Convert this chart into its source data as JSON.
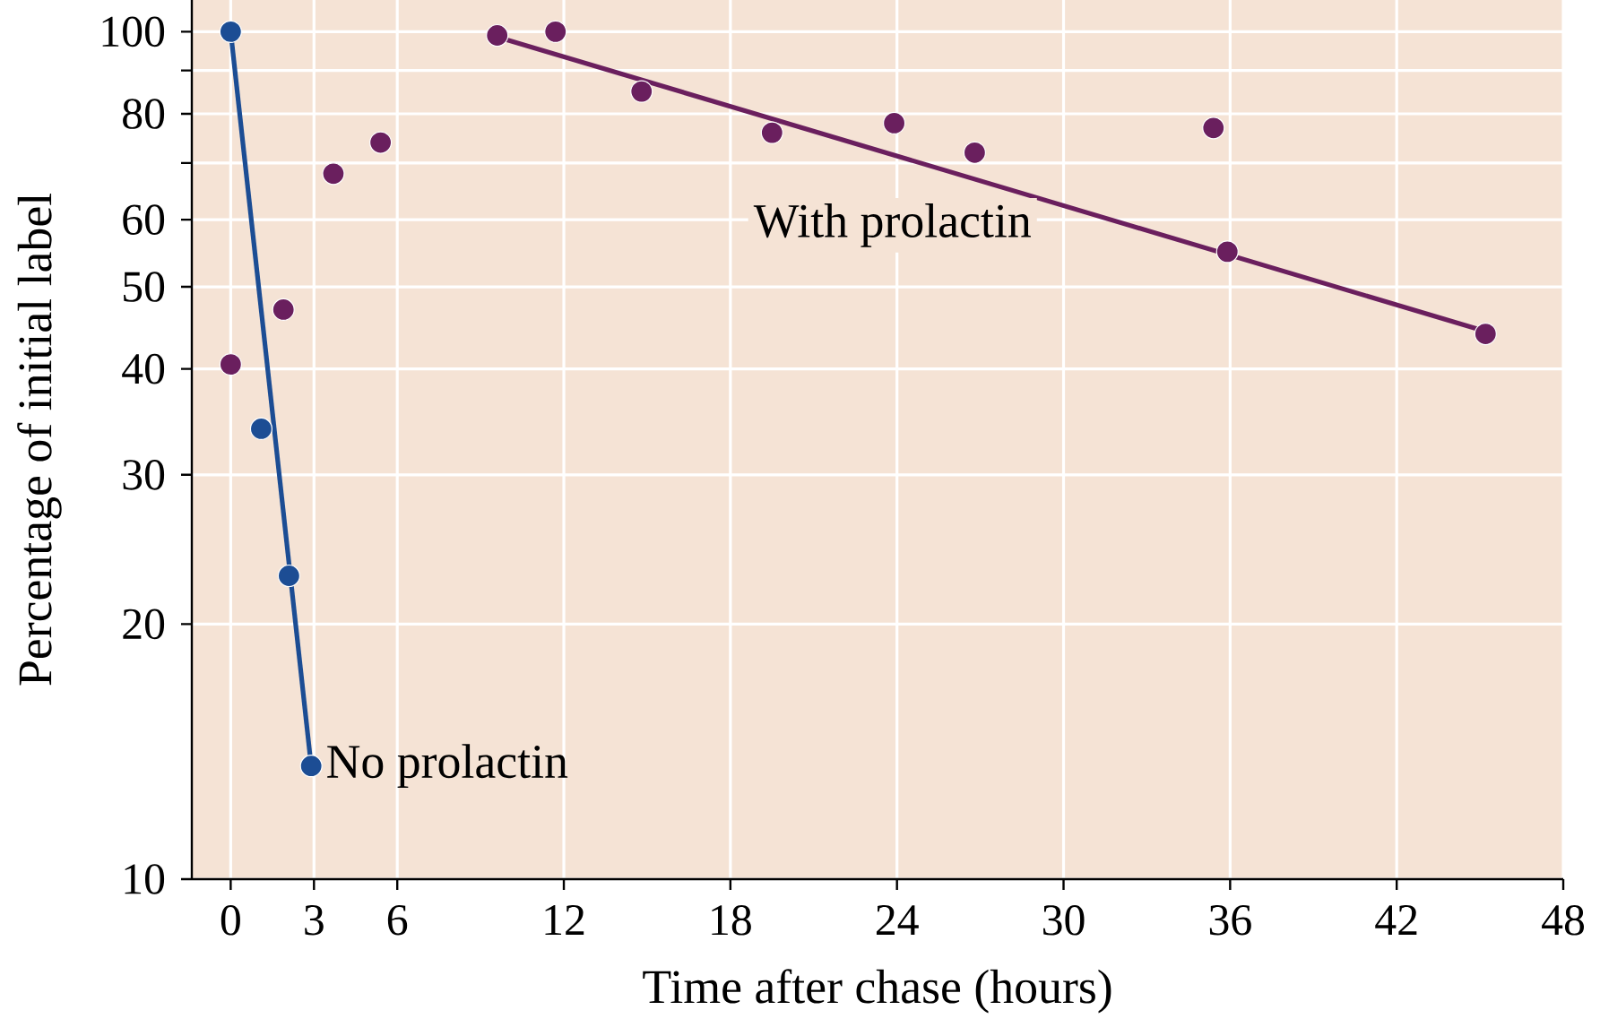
{
  "chart_data": {
    "type": "scatter",
    "xlabel": "Time after chase (hours)",
    "ylabel": "Percentage of initial label",
    "series": [
      {
        "color": "#1c4d94",
        "x": [
          0,
          1.1,
          2.1,
          2.9
        ],
        "values": [
          100,
          34,
          22.8,
          13.6
        ],
        "marker": "circle"
      },
      {
        "type": "line",
        "name": "No prolactin",
        "color": "#1c4d94",
        "x": [
          0,
          2.9
        ],
        "values": [
          100,
          13.6
        ],
        "marker": "none"
      },
      {
        "color": "#6a1f5e",
        "x": [
          0,
          1.9,
          3.7,
          5.4,
          9.6,
          11.7,
          14.8,
          19.5,
          23.9,
          26.8,
          35.4,
          35.9,
          45.2
        ],
        "values": [
          40.5,
          47,
          68,
          74,
          99,
          100,
          85,
          76,
          78,
          72,
          77,
          55,
          44
        ],
        "marker": "circle"
      },
      {
        "type": "line",
        "name": "With prolactin",
        "color": "#6a1f5e",
        "x": [
          9.6,
          45.2
        ],
        "values": [
          98.6,
          44.3
        ],
        "marker": "none"
      }
    ],
    "xlim": [
      -1.4,
      48
    ],
    "xticks": [
      0,
      3,
      6,
      12,
      18,
      24,
      30,
      36,
      42,
      48
    ],
    "ylim": [
      10,
      109
    ],
    "yticks": [
      10,
      20,
      30,
      40,
      50,
      60,
      {
        "value": 70,
        "label": null
      },
      80,
      {
        "value": 90,
        "label": null
      },
      100
    ],
    "log": "y",
    "grid": true,
    "legend": false
  }
}
